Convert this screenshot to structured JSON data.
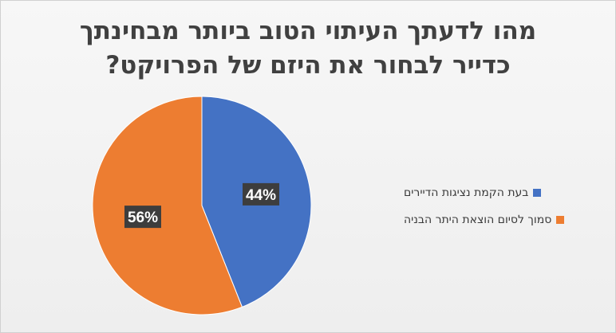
{
  "chart_data": {
    "type": "pie",
    "title_lines": [
      "מהו לדעתך העיתוי הטוב ביותר מבחינתך",
      "כדייר לבחור את היזם של הפרויקט?"
    ],
    "series": [
      {
        "name": "בעת הקמת נציגות הדיירים",
        "value": 44,
        "label": "44%",
        "color": "#4472c4"
      },
      {
        "name": "סמוך לסיום הוצאת היתר הבניה",
        "value": 56,
        "label": "56%",
        "color": "#ed7d31"
      }
    ],
    "legend_position": "right"
  }
}
